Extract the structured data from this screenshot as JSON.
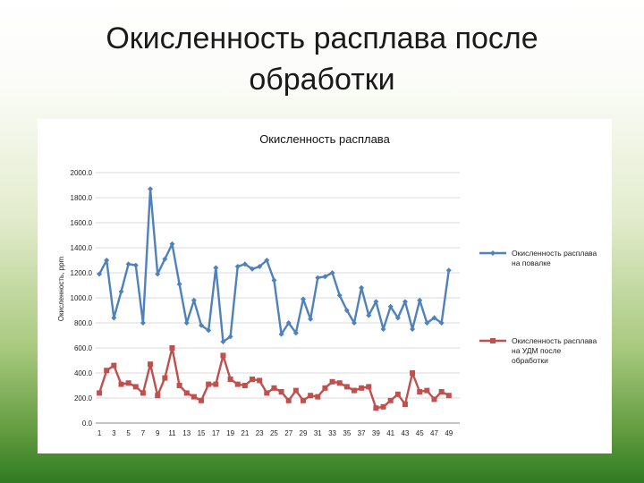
{
  "slide": {
    "title_line1": "Окисленность расплава после",
    "title_line2": "обработки"
  },
  "colors": {
    "series1": "#4f81bd",
    "series2": "#c0504d",
    "grid": "#d9d9d9"
  },
  "chart_data": {
    "type": "line",
    "title": "Окисленность расплава",
    "xlabel": "",
    "ylabel": "Окисленность, ppm",
    "ylim": [
      0,
      2000
    ],
    "yticks": [
      0,
      200,
      400,
      600,
      800,
      1000,
      1200,
      1400,
      1600,
      1800,
      2000
    ],
    "ytick_labels": [
      "0.0",
      "200.0",
      "400.0",
      "600.0",
      "800.0",
      "1000.0",
      "1200.0",
      "1400.0",
      "1600.0",
      "1800.0",
      "2000.0"
    ],
    "x": [
      1,
      2,
      3,
      4,
      5,
      6,
      7,
      8,
      9,
      10,
      11,
      12,
      13,
      14,
      15,
      16,
      17,
      18,
      19,
      20,
      21,
      22,
      23,
      24,
      25,
      26,
      27,
      28,
      29,
      30,
      31,
      32,
      33,
      34,
      35,
      36,
      37,
      38,
      39,
      40,
      41,
      42,
      43,
      44,
      45,
      46,
      47,
      48,
      49,
      50
    ],
    "xtick_labels": [
      "1",
      "3",
      "5",
      "7",
      "9",
      "11",
      "13",
      "15",
      "17",
      "19",
      "21",
      "23",
      "25",
      "27",
      "29",
      "31",
      "33",
      "35",
      "37",
      "39",
      "41",
      "43",
      "45",
      "47",
      "49"
    ],
    "grid": true,
    "legend_position": "right",
    "series": [
      {
        "name": "Окисленность расплава на повалке",
        "marker": "diamond",
        "values": [
          1190,
          1300,
          840,
          1050,
          1270,
          1260,
          800,
          1870,
          1190,
          1310,
          1430,
          1110,
          800,
          980,
          780,
          740,
          1240,
          650,
          690,
          1250,
          1270,
          1230,
          1250,
          1300,
          1140,
          710,
          800,
          720,
          990,
          830,
          1160,
          1170,
          1200,
          1020,
          900,
          800,
          1080,
          860,
          970,
          750,
          930,
          840,
          970,
          750,
          980,
          800,
          840,
          800,
          1220,
          null
        ],
        "color": "#4f81bd"
      },
      {
        "name": "Окисленность расплава на УДМ после обработки",
        "marker": "square",
        "values": [
          240,
          420,
          460,
          310,
          320,
          290,
          240,
          470,
          220,
          360,
          600,
          300,
          240,
          210,
          180,
          310,
          310,
          540,
          350,
          310,
          300,
          350,
          340,
          240,
          280,
          250,
          180,
          260,
          180,
          220,
          210,
          280,
          330,
          320,
          290,
          260,
          280,
          290,
          120,
          130,
          180,
          230,
          150,
          400,
          250,
          260,
          190,
          250,
          220,
          null
        ]
      }
    ]
  }
}
